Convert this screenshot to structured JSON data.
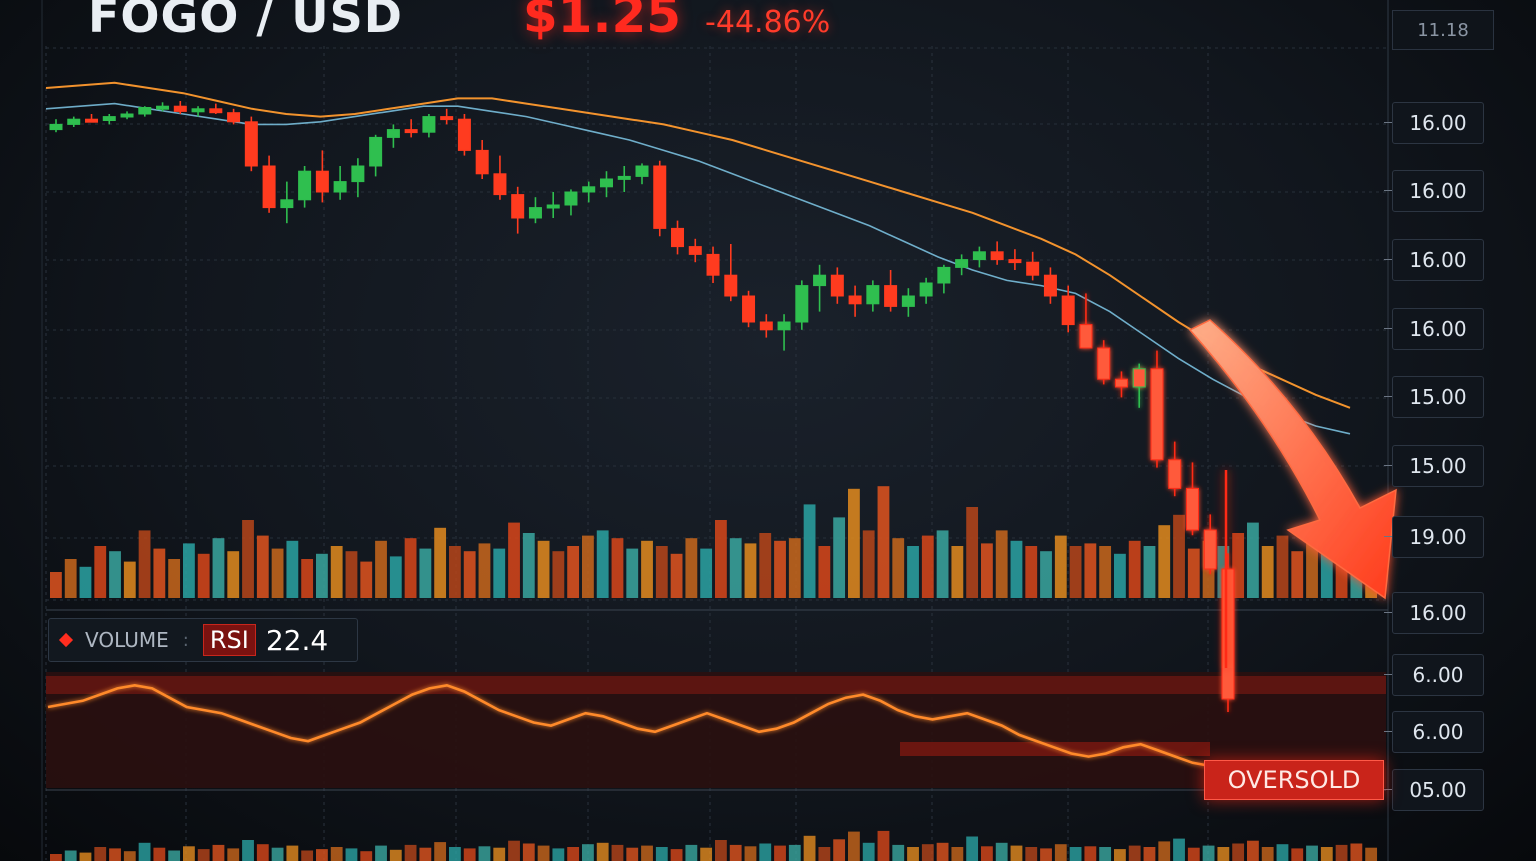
{
  "header": {
    "pair": "FOGO / USD",
    "price": "$1.25",
    "change": "-44.86%",
    "top_right": "11.18"
  },
  "price_axis_labels": [
    "16.00",
    "16.00",
    "16.00",
    "16.00",
    "15.00",
    "15.00",
    "19.00",
    "16.00",
    "6..00",
    "6..00",
    "05.00"
  ],
  "legend": {
    "volume_label": "VOLUME",
    "separator": ":",
    "rsi_label": "RSI",
    "rsi_value": "22.4"
  },
  "rsi_badge": "OVERSOLD",
  "colors": {
    "background": "#0d1117",
    "bull": "#2fbf4f",
    "bear": "#ff3b1f",
    "ma_fast": "#ff9a2e",
    "ma_slow": "#7fc8e8",
    "accent_red": "#ff2a1f",
    "rsi_line": "#ff8a2a"
  },
  "chart_data": {
    "type": "candlestick",
    "title": "FOGO / USD",
    "ohlc": [
      [
        0.4,
        0.8,
        0.3,
        0.6
      ],
      [
        0.6,
        0.9,
        0.5,
        0.8
      ],
      [
        0.8,
        1.0,
        0.7,
        0.75
      ],
      [
        0.75,
        1.0,
        0.6,
        0.9
      ],
      [
        0.9,
        1.1,
        0.8,
        1.0
      ],
      [
        1.0,
        1.3,
        0.9,
        1.25
      ],
      [
        1.25,
        1.45,
        1.1,
        1.3
      ],
      [
        1.3,
        1.5,
        1.0,
        1.1
      ],
      [
        1.1,
        1.3,
        0.9,
        1.2
      ],
      [
        1.2,
        1.4,
        1.0,
        1.05
      ],
      [
        1.05,
        1.2,
        0.6,
        0.7
      ],
      [
        0.7,
        0.9,
        -1.2,
        -1.0
      ],
      [
        -1.0,
        -0.6,
        -2.8,
        -2.6
      ],
      [
        -2.6,
        -1.6,
        -3.2,
        -2.3
      ],
      [
        -2.3,
        -1.0,
        -2.6,
        -1.2
      ],
      [
        -1.2,
        -0.4,
        -2.4,
        -2.0
      ],
      [
        -2.0,
        -1.0,
        -2.3,
        -1.6
      ],
      [
        -1.6,
        -0.7,
        -2.2,
        -1.0
      ],
      [
        -1.0,
        0.2,
        -1.4,
        0.1
      ],
      [
        0.1,
        0.6,
        -0.3,
        0.4
      ],
      [
        0.4,
        0.8,
        0.1,
        0.3
      ],
      [
        0.3,
        1.0,
        0.1,
        0.9
      ],
      [
        0.9,
        1.2,
        0.6,
        0.8
      ],
      [
        0.8,
        1.0,
        -0.6,
        -0.4
      ],
      [
        -0.4,
        0.0,
        -1.5,
        -1.3
      ],
      [
        -1.3,
        -0.6,
        -2.3,
        -2.1
      ],
      [
        -2.1,
        -1.8,
        -3.6,
        -3.0
      ],
      [
        -3.0,
        -2.2,
        -3.2,
        -2.6
      ],
      [
        -2.6,
        -2.0,
        -3.0,
        -2.5
      ],
      [
        -2.5,
        -1.9,
        -2.9,
        -2.0
      ],
      [
        -2.0,
        -1.6,
        -2.4,
        -1.8
      ],
      [
        -1.8,
        -1.2,
        -2.2,
        -1.5
      ],
      [
        -1.5,
        -1.0,
        -2.0,
        -1.4
      ],
      [
        -1.4,
        -0.9,
        -1.7,
        -1.0
      ],
      [
        -1.0,
        -0.8,
        -3.7,
        -3.4
      ],
      [
        -3.4,
        -3.1,
        -4.4,
        -4.1
      ],
      [
        -4.1,
        -3.8,
        -4.7,
        -4.4
      ],
      [
        -4.4,
        -4.1,
        -5.5,
        -5.2
      ],
      [
        -5.2,
        -4.0,
        -6.2,
        -6.0
      ],
      [
        -6.0,
        -5.8,
        -7.2,
        -7.0
      ],
      [
        -7.0,
        -6.7,
        -7.6,
        -7.3
      ],
      [
        -7.3,
        -6.7,
        -8.1,
        -7.0
      ],
      [
        -7.0,
        -5.4,
        -7.3,
        -5.6
      ],
      [
        -5.6,
        -4.8,
        -6.6,
        -5.2
      ],
      [
        -5.2,
        -4.9,
        -6.3,
        -6.0
      ],
      [
        -6.0,
        -5.6,
        -6.8,
        -6.3
      ],
      [
        -6.3,
        -5.4,
        -6.6,
        -5.6
      ],
      [
        -5.6,
        -5.0,
        -6.6,
        -6.4
      ],
      [
        -6.4,
        -5.7,
        -6.8,
        -6.0
      ],
      [
        -6.0,
        -5.3,
        -6.3,
        -5.5
      ],
      [
        -5.5,
        -4.8,
        -5.9,
        -4.9
      ],
      [
        -4.9,
        -4.4,
        -5.2,
        -4.6
      ],
      [
        -4.6,
        -4.1,
        -4.9,
        -4.3
      ],
      [
        -4.3,
        -3.9,
        -4.8,
        -4.6
      ],
      [
        -4.6,
        -4.2,
        -5.0,
        -4.7
      ],
      [
        -4.7,
        -4.3,
        -5.4,
        -5.2
      ],
      [
        -5.2,
        -4.9,
        -6.3,
        -6.0
      ],
      [
        -6.0,
        -5.6,
        -7.4,
        -7.1
      ],
      [
        -7.1,
        -5.9,
        -7.8,
        -8.0
      ],
      [
        -8.0,
        -7.7,
        -9.4,
        -9.2
      ],
      [
        -9.2,
        -8.9,
        -9.9,
        -9.5
      ],
      [
        -9.5,
        -8.6,
        -10.3,
        -8.8
      ],
      [
        -8.8,
        -8.1,
        -12.6,
        -12.3
      ],
      [
        -12.3,
        -11.6,
        -13.7,
        -13.4
      ],
      [
        -13.4,
        -12.4,
        -15.2,
        -15.0
      ],
      [
        -15.0,
        -14.4,
        -16.7,
        -16.5
      ],
      [
        -16.5,
        -15.9,
        -22.0,
        -21.5
      ]
    ],
    "ma_fast": [
      2.0,
      2.1,
      2.2,
      2.0,
      1.8,
      1.5,
      1.2,
      1.0,
      0.9,
      1.0,
      1.2,
      1.4,
      1.6,
      1.6,
      1.4,
      1.2,
      1.0,
      0.8,
      0.6,
      0.3,
      0.0,
      -0.4,
      -0.8,
      -1.2,
      -1.6,
      -2.0,
      -2.4,
      -2.8,
      -3.3,
      -3.8,
      -4.4,
      -5.2,
      -6.1,
      -7.0,
      -7.8,
      -8.6,
      -9.2,
      -9.8,
      -10.3
    ],
    "ma_slow": [
      1.2,
      1.3,
      1.4,
      1.2,
      1.0,
      0.8,
      0.6,
      0.6,
      0.7,
      0.9,
      1.1,
      1.3,
      1.3,
      1.1,
      0.9,
      0.6,
      0.3,
      0.0,
      -0.4,
      -0.8,
      -1.3,
      -1.8,
      -2.3,
      -2.8,
      -3.3,
      -3.9,
      -4.5,
      -5.0,
      -5.4,
      -5.6,
      -5.9,
      -6.6,
      -7.5,
      -8.4,
      -9.2,
      -9.9,
      -10.5,
      -11.0,
      -11.3
    ],
    "volume": [
      20,
      30,
      24,
      40,
      36,
      28,
      52,
      38,
      30,
      42,
      34,
      46,
      36,
      60,
      48,
      38,
      44,
      30,
      34,
      40,
      36,
      28,
      44,
      32,
      46,
      38,
      54,
      40,
      36,
      42,
      38,
      58,
      50,
      44,
      36,
      40,
      48,
      52,
      46,
      38,
      44,
      40,
      34,
      46,
      38,
      60,
      46,
      42,
      50,
      44,
      46,
      72,
      40,
      62,
      84,
      52,
      86,
      46,
      40,
      48,
      52,
      40,
      70,
      42,
      52,
      44,
      40,
      36,
      48,
      40,
      42,
      40,
      34,
      44,
      40,
      56,
      64,
      38,
      44,
      40,
      50,
      58,
      40,
      48,
      36,
      44,
      40,
      46,
      50,
      38
    ],
    "rsi": [
      60,
      62,
      64,
      68,
      72,
      74,
      72,
      66,
      60,
      58,
      56,
      52,
      48,
      44,
      40,
      38,
      42,
      46,
      50,
      56,
      62,
      68,
      72,
      74,
      70,
      64,
      58,
      54,
      50,
      48,
      52,
      56,
      54,
      50,
      46,
      44,
      48,
      52,
      56,
      52,
      48,
      44,
      46,
      50,
      56,
      62,
      66,
      68,
      64,
      58,
      54,
      52,
      54,
      56,
      52,
      48,
      42,
      38,
      34,
      30,
      28,
      30,
      34,
      36,
      32,
      28,
      24,
      22
    ],
    "rsi_value": 22.4,
    "annotations": [
      "OVERSOLD"
    ]
  }
}
